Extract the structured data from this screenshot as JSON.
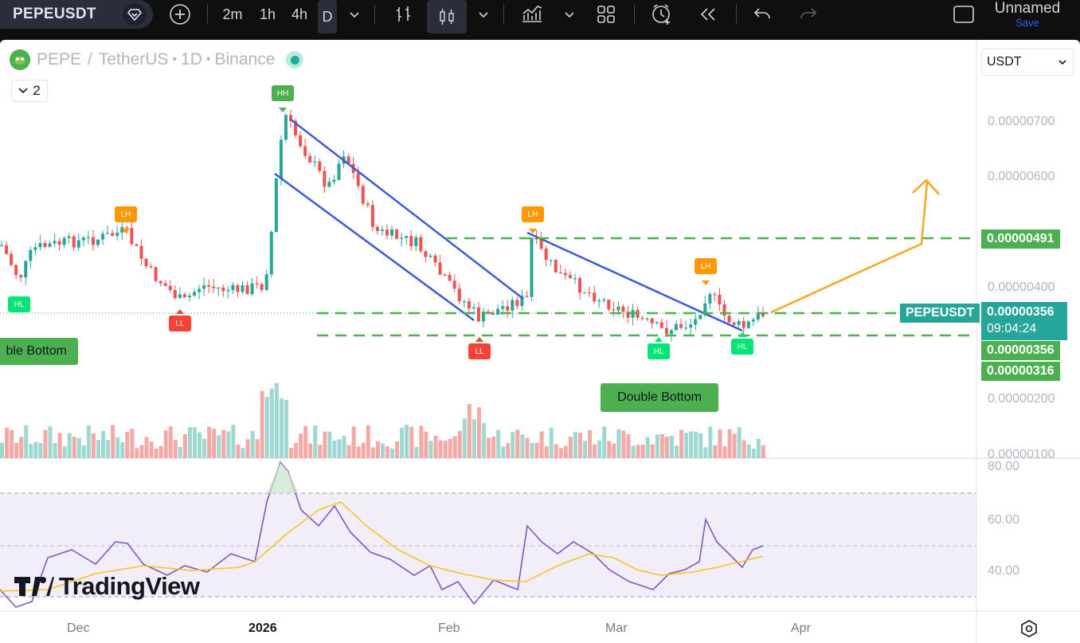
{
  "toolbar": {
    "symbol": "PEPEUSDT",
    "timeframes": [
      "2m",
      "1h",
      "4h",
      "D"
    ],
    "active_timeframe": "D",
    "layout_name": "Unnamed",
    "save_label": "Save"
  },
  "legend": {
    "base": "PEPE",
    "separator": "/",
    "quote": "TetherUS",
    "interval": "1D",
    "exchange": "Binance",
    "dot": "•",
    "collapse_count": "2"
  },
  "price_axis": {
    "currency": "USDT",
    "labels": [
      "0.00000700",
      "0.00000600",
      "0.00000400",
      "0.00000200",
      "0.00000100"
    ],
    "rsi_labels": [
      "80.00",
      "60.00",
      "40.00"
    ]
  },
  "price_tags": {
    "resistance": "0.00000491",
    "symbol_tag": "PEPEUSDT",
    "last_price": "0.00000356",
    "countdown": "09:04:24",
    "support_upper": "0.00000356",
    "support_lower": "0.00000316"
  },
  "time_axis": [
    "Dec",
    "2026",
    "Feb",
    "Mar",
    "Apr"
  ],
  "annotations": {
    "pivots": [
      {
        "label": "HL",
        "kind": "hl"
      },
      {
        "label": "LH",
        "kind": "lh"
      },
      {
        "label": "LL",
        "kind": "ll"
      },
      {
        "label": "HH",
        "kind": "hh"
      },
      {
        "label": "LL",
        "kind": "ll"
      },
      {
        "label": "LH",
        "kind": "lh"
      },
      {
        "label": "HL",
        "kind": "hl"
      },
      {
        "label": "LH",
        "kind": "lh"
      },
      {
        "label": "HL",
        "kind": "hl"
      }
    ],
    "double_bottom_left": "ble Bottom",
    "double_bottom_right": "Double Bottom"
  },
  "watermark": "TradingView",
  "colors": {
    "up": "#26a69a",
    "down": "#ef5350",
    "trendline": "#3a5bd9",
    "level": "#4caf50",
    "projection": "#f5a623",
    "rsi": "#7e57c2",
    "rsi_ma": "#f5c518",
    "hl_badge": "#00e676",
    "lh_badge": "#ff9800",
    "ll_badge": "#f44336",
    "hh_badge": "#4caf50"
  }
}
